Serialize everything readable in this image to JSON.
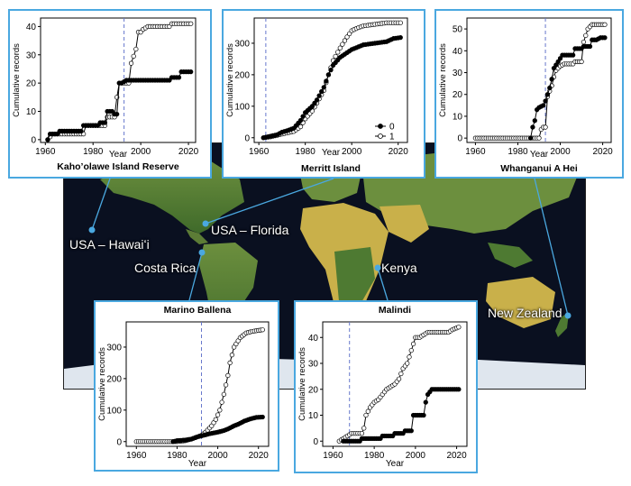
{
  "colors": {
    "panel_border": "#4aa8e0",
    "leader_line": "#4aa8e0",
    "dashed_line": "#6677cc",
    "series_0": "#000000",
    "series_1": "#ffffff",
    "map_ocean": "#0a1020",
    "map_land_green": "#4e7a32",
    "map_land_yellow": "#c9b04a",
    "map_ice": "#dfe6ee"
  },
  "places": [
    {
      "id": "hawaii",
      "label": "USA – Hawaiʻi"
    },
    {
      "id": "florida",
      "label": "USA – Florida"
    },
    {
      "id": "costa-rica",
      "label": "Costa Rica"
    },
    {
      "id": "kenya",
      "label": "Kenya"
    },
    {
      "id": "new-zealand",
      "label": "New Zealand"
    }
  ],
  "chart_data": [
    {
      "type": "line",
      "id": "kahoolawe",
      "title": "Kaho’olawe Island Reserve",
      "xlabel": "Year",
      "ylabel": "Cumulative records",
      "xlim": [
        1958,
        2023
      ],
      "ylim": [
        -1,
        43
      ],
      "xticks": [
        1960,
        1980,
        2000,
        2020
      ],
      "yticks": [
        0,
        10,
        20,
        30,
        40
      ],
      "vline_x": 1993,
      "series": [
        {
          "key": "0",
          "values": [
            [
              1961,
              0
            ],
            [
              1962,
              2
            ],
            [
              1965,
              2
            ],
            [
              1966,
              3
            ],
            [
              1975,
              3
            ],
            [
              1976,
              5
            ],
            [
              1982,
              5
            ],
            [
              1983,
              6
            ],
            [
              1985,
              6
            ],
            [
              1986,
              10
            ],
            [
              1988,
              10
            ],
            [
              1989,
              9
            ],
            [
              1990,
              9
            ],
            [
              1991,
              20
            ],
            [
              1992,
              20
            ],
            [
              1994,
              21
            ],
            [
              2012,
              21
            ],
            [
              2013,
              22
            ],
            [
              2016,
              22
            ],
            [
              2017,
              24
            ],
            [
              2021,
              24
            ]
          ]
        },
        {
          "key": "1",
          "values": [
            [
              1961,
              0
            ],
            [
              1962,
              1
            ],
            [
              1963,
              2
            ],
            [
              1976,
              2
            ],
            [
              1977,
              5
            ],
            [
              1985,
              5
            ],
            [
              1986,
              8
            ],
            [
              1989,
              8
            ],
            [
              1990,
              15
            ],
            [
              1991,
              20
            ],
            [
              1995,
              20
            ],
            [
              1996,
              27
            ],
            [
              1998,
              32
            ],
            [
              1999,
              38
            ],
            [
              2000,
              38
            ],
            [
              2001,
              39
            ],
            [
              2003,
              40
            ],
            [
              2012,
              40
            ],
            [
              2013,
              41
            ],
            [
              2021,
              41
            ]
          ]
        }
      ]
    },
    {
      "type": "line",
      "id": "merritt",
      "title": "Merritt Island",
      "xlabel": "Year",
      "ylabel": "Cumulative records",
      "xlim": [
        1958,
        2024
      ],
      "ylim": [
        -15,
        380
      ],
      "xticks": [
        1960,
        1980,
        2000,
        2020
      ],
      "yticks": [
        0,
        100,
        200,
        300
      ],
      "vline_x": 1963,
      "legend": [
        {
          "key": "0",
          "label": "0"
        },
        {
          "key": "1",
          "label": "1"
        }
      ],
      "series": [
        {
          "key": "0",
          "values": [
            [
              1962,
              0
            ],
            [
              1965,
              5
            ],
            [
              1968,
              10
            ],
            [
              1970,
              18
            ],
            [
              1972,
              22
            ],
            [
              1975,
              30
            ],
            [
              1978,
              55
            ],
            [
              1980,
              80
            ],
            [
              1983,
              100
            ],
            [
              1985,
              120
            ],
            [
              1988,
              160
            ],
            [
              1990,
              200
            ],
            [
              1992,
              230
            ],
            [
              1995,
              255
            ],
            [
              1998,
              270
            ],
            [
              2000,
              280
            ],
            [
              2005,
              295
            ],
            [
              2010,
              300
            ],
            [
              2015,
              305
            ],
            [
              2018,
              315
            ],
            [
              2021,
              318
            ]
          ]
        },
        {
          "key": "1",
          "values": [
            [
              1962,
              0
            ],
            [
              1965,
              3
            ],
            [
              1968,
              8
            ],
            [
              1970,
              12
            ],
            [
              1975,
              20
            ],
            [
              1978,
              35
            ],
            [
              1980,
              60
            ],
            [
              1983,
              85
            ],
            [
              1985,
              110
            ],
            [
              1988,
              150
            ],
            [
              1990,
              200
            ],
            [
              1992,
              245
            ],
            [
              1995,
              285
            ],
            [
              1998,
              320
            ],
            [
              2000,
              340
            ],
            [
              2003,
              350
            ],
            [
              2005,
              355
            ],
            [
              2010,
              360
            ],
            [
              2015,
              365
            ],
            [
              2021,
              365
            ]
          ]
        }
      ]
    },
    {
      "type": "line",
      "id": "whanganui",
      "title": "Whanganui A Hei",
      "xlabel": "Year",
      "ylabel": "Cumulative records",
      "xlim": [
        1956,
        2024
      ],
      "ylim": [
        -2,
        55
      ],
      "xticks": [
        1960,
        1980,
        2000,
        2020
      ],
      "yticks": [
        0,
        10,
        20,
        30,
        40,
        50
      ],
      "vline_x": 1993,
      "series": [
        {
          "key": "0",
          "values": [
            [
              1986,
              0
            ],
            [
              1987,
              5
            ],
            [
              1988,
              8
            ],
            [
              1989,
              13
            ],
            [
              1990,
              14
            ],
            [
              1992,
              15
            ],
            [
              1993,
              17
            ],
            [
              1995,
              23
            ],
            [
              1996,
              27
            ],
            [
              1997,
              32
            ],
            [
              1999,
              35
            ],
            [
              2001,
              38
            ],
            [
              2006,
              38
            ],
            [
              2007,
              41
            ],
            [
              2010,
              41
            ],
            [
              2011,
              42
            ],
            [
              2014,
              42
            ],
            [
              2015,
              45
            ],
            [
              2017,
              45
            ],
            [
              2019,
              46
            ],
            [
              2021,
              46
            ]
          ]
        },
        {
          "key": "1",
          "values": [
            [
              1960,
              0
            ],
            [
              1990,
              0
            ],
            [
              1991,
              4
            ],
            [
              1992,
              5
            ],
            [
              1993,
              5
            ],
            [
              1994,
              19
            ],
            [
              1996,
              24
            ],
            [
              1997,
              28
            ],
            [
              1998,
              31
            ],
            [
              2000,
              33
            ],
            [
              2002,
              34
            ],
            [
              2006,
              34
            ],
            [
              2007,
              35
            ],
            [
              2010,
              35
            ],
            [
              2011,
              44
            ],
            [
              2013,
              50
            ],
            [
              2015,
              52
            ],
            [
              2021,
              52
            ]
          ]
        }
      ]
    },
    {
      "type": "line",
      "id": "marino",
      "title": "Marino Ballena",
      "xlabel": "Year",
      "ylabel": "Cumulative records",
      "xlim": [
        1955,
        2025
      ],
      "ylim": [
        -15,
        380
      ],
      "xticks": [
        1960,
        1980,
        2000,
        2020
      ],
      "yticks": [
        0,
        100,
        200,
        300
      ],
      "vline_x": 1992,
      "series": [
        {
          "key": "0",
          "values": [
            [
              1978,
              0
            ],
            [
              1980,
              3
            ],
            [
              1984,
              5
            ],
            [
              1987,
              8
            ],
            [
              1990,
              15
            ],
            [
              1993,
              20
            ],
            [
              1996,
              25
            ],
            [
              2000,
              30
            ],
            [
              2003,
              35
            ],
            [
              2005,
              40
            ],
            [
              2008,
              50
            ],
            [
              2010,
              55
            ],
            [
              2013,
              65
            ],
            [
              2016,
              72
            ],
            [
              2019,
              77
            ],
            [
              2022,
              78
            ]
          ]
        },
        {
          "key": "1",
          "values": [
            [
              1960,
              0
            ],
            [
              1980,
              0
            ],
            [
              1984,
              3
            ],
            [
              1987,
              8
            ],
            [
              1990,
              15
            ],
            [
              1992,
              20
            ],
            [
              1994,
              30
            ],
            [
              1997,
              50
            ],
            [
              1999,
              70
            ],
            [
              2001,
              100
            ],
            [
              2003,
              150
            ],
            [
              2005,
              210
            ],
            [
              2006,
              250
            ],
            [
              2008,
              300
            ],
            [
              2011,
              330
            ],
            [
              2014,
              345
            ],
            [
              2017,
              350
            ],
            [
              2022,
              355
            ]
          ]
        }
      ]
    },
    {
      "type": "line",
      "id": "malindi",
      "title": "Malindi",
      "xlabel": "Year",
      "ylabel": "Cumulative records",
      "xlim": [
        1955,
        2025
      ],
      "ylim": [
        -2,
        46
      ],
      "xticks": [
        1960,
        1980,
        2000,
        2020
      ],
      "yticks": [
        0,
        10,
        20,
        30,
        40
      ],
      "vline_x": 1968,
      "series": [
        {
          "key": "0",
          "values": [
            [
              1965,
              0
            ],
            [
              1973,
              0
            ],
            [
              1974,
              1
            ],
            [
              1983,
              1
            ],
            [
              1984,
              2
            ],
            [
              1989,
              2
            ],
            [
              1990,
              3
            ],
            [
              1994,
              3
            ],
            [
              1995,
              4
            ],
            [
              1998,
              4
            ],
            [
              1999,
              10
            ],
            [
              2004,
              10
            ],
            [
              2005,
              15
            ],
            [
              2006,
              18
            ],
            [
              2008,
              20
            ],
            [
              2021,
              20
            ]
          ]
        },
        {
          "key": "1",
          "values": [
            [
              1963,
              0
            ],
            [
              1965,
              1
            ],
            [
              1967,
              2
            ],
            [
              1969,
              3
            ],
            [
              1974,
              3
            ],
            [
              1975,
              5
            ],
            [
              1976,
              10
            ],
            [
              1978,
              13
            ],
            [
              1980,
              15
            ],
            [
              1982,
              16
            ],
            [
              1984,
              18
            ],
            [
              1986,
              20
            ],
            [
              1990,
              22
            ],
            [
              1992,
              24
            ],
            [
              1994,
              28
            ],
            [
              1996,
              30
            ],
            [
              1998,
              35
            ],
            [
              2000,
              40
            ],
            [
              2002,
              40
            ],
            [
              2004,
              41
            ],
            [
              2006,
              42
            ],
            [
              2016,
              42
            ],
            [
              2018,
              43
            ],
            [
              2021,
              44
            ]
          ]
        }
      ]
    }
  ]
}
